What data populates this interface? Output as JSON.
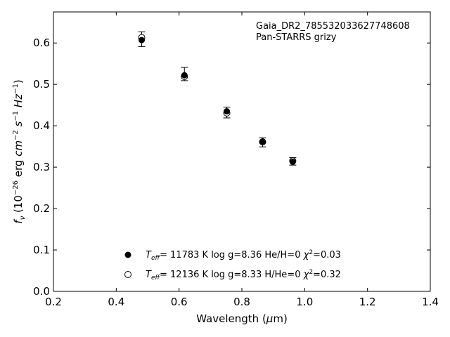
{
  "chart_data": {
    "type": "scatter",
    "xlabel_parts": [
      "Wavelength (",
      "μ",
      "m)"
    ],
    "ylabel": "f_ν (10^-26 erg cm^-2 s^-1 Hz^-1)",
    "xlim": [
      0.2,
      1.4
    ],
    "ylim": [
      0.0,
      0.675
    ],
    "x_ticks": [
      0.2,
      0.4,
      0.6,
      0.8,
      1.0,
      1.2,
      1.4
    ],
    "x_tick_labels": [
      "0.2",
      "0.4",
      "0.6",
      "0.8",
      "1.0",
      "1.2",
      "1.4"
    ],
    "y_ticks": [
      0.0,
      0.1,
      0.2,
      0.3,
      0.4,
      0.5,
      0.6
    ],
    "y_tick_labels": [
      "0.0",
      "0.1",
      "0.2",
      "0.3",
      "0.4",
      "0.5",
      "0.6"
    ],
    "grid": false,
    "annotations": [
      "Gaia_DR2_785532033627748608",
      "Pan-STARRS grizy"
    ],
    "observed": {
      "x": [
        0.481,
        0.617,
        0.752,
        0.866,
        0.962
      ],
      "y": [
        0.609,
        0.525,
        0.432,
        0.36,
        0.314
      ],
      "yerr": [
        0.018,
        0.016,
        0.013,
        0.011,
        0.009
      ]
    },
    "series": [
      {
        "marker": "filled",
        "color": "#000000",
        "x": [
          0.481,
          0.617,
          0.752,
          0.866,
          0.962
        ],
        "y": [
          0.607,
          0.522,
          0.435,
          0.362,
          0.313
        ]
      },
      {
        "marker": "open",
        "color": "#000000",
        "x": [
          0.481,
          0.617,
          0.752,
          0.866,
          0.962
        ],
        "y": [
          0.613,
          0.519,
          0.431,
          0.361,
          0.315
        ]
      }
    ],
    "legend": {
      "placement": "lower-center",
      "entries": [
        {
          "marker": "filled",
          "teff": "= 11783 K",
          "logg": "log g=8.36",
          "comp": "He/H=0",
          "chi": "=0.03"
        },
        {
          "marker": "open",
          "teff": "= 12136 K",
          "logg": "log g=8.33",
          "comp": "H/He=0",
          "chi": "=0.32"
        }
      ]
    }
  }
}
